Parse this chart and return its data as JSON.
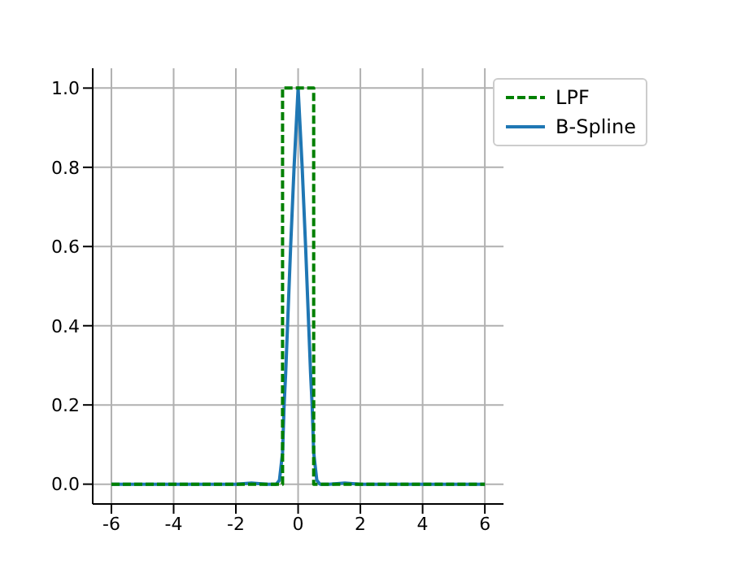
{
  "chart_data": {
    "type": "line",
    "xlim": [
      -6.6,
      6.6
    ],
    "xticks": [
      -6,
      -4,
      -2,
      0,
      2,
      4,
      6
    ],
    "ylim": [
      -0.05,
      1.05
    ],
    "yticks": [
      {
        "value": 0,
        "label": "0.0"
      },
      0.2,
      0.4,
      0.6,
      0.8,
      {
        "value": 1,
        "label": "1.0"
      }
    ],
    "grid": true,
    "legend": "top right",
    "marker": "none",
    "series": [
      {
        "name": "LPF",
        "color": "#008000",
        "line_style": "dashed",
        "x": [
          -6,
          -0.5,
          -0.5,
          0.5,
          0.5,
          6
        ],
        "values": [
          0,
          0,
          1,
          1,
          0,
          0
        ]
      },
      {
        "name": "B-Spline",
        "color": "#1f77b4",
        "line_style": "solid",
        "x": [
          -6,
          -2,
          -1.5,
          -1,
          -0.7,
          -0.6,
          -0.5,
          -0.45,
          -0.4,
          -0.34,
          -0.24,
          -0.13,
          0,
          0.13,
          0.24,
          0.34,
          0.4,
          0.45,
          0.5,
          0.6,
          0.7,
          1,
          1.5,
          2,
          6
        ],
        "values": [
          0,
          0,
          0.003,
          0,
          0,
          0.01,
          0.08,
          0.2,
          0.28,
          0.4,
          0.6,
          0.8,
          1,
          0.8,
          0.6,
          0.4,
          0.28,
          0.2,
          0.08,
          0.01,
          0,
          0,
          0.003,
          0,
          0
        ]
      }
    ]
  }
}
